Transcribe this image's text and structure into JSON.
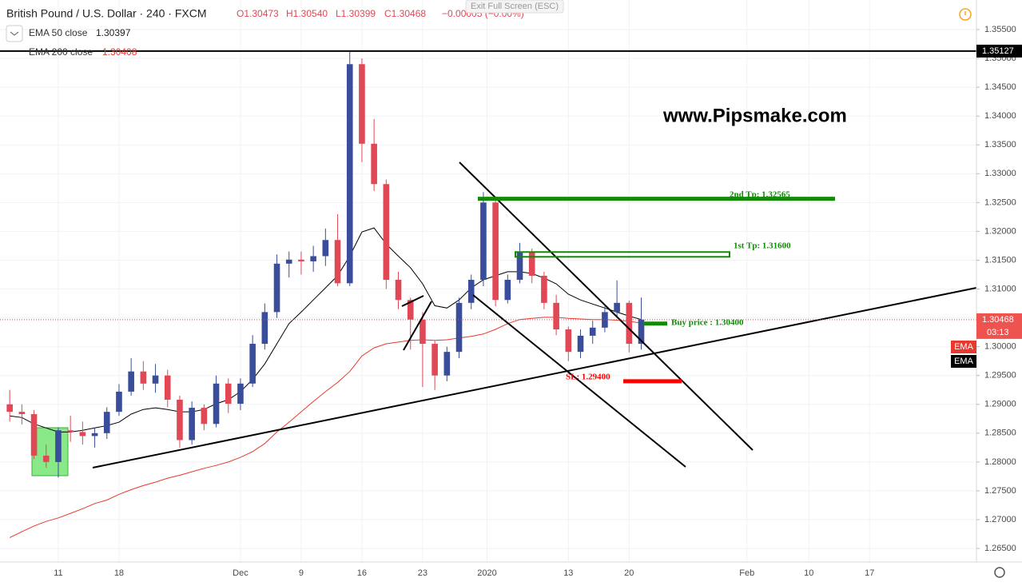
{
  "chart_data": {
    "type": "candlestick",
    "title": "British Pound / U.S. Dollar · 240 · FXCM",
    "ohlc_labels": [
      "O1.30473",
      "H1.30540",
      "L1.30399",
      "C1.30468",
      "−0.00005 (−0.00%)"
    ],
    "fullscreen_hint": "Exit Full Screen (ESC)",
    "watermark": "www.Pipsmake.com",
    "up_color": "#3a4d9a",
    "down_color": "#e04856",
    "x": [
      -4,
      -3,
      -2,
      -1,
      0,
      1,
      2,
      3,
      4,
      5,
      6,
      7,
      8,
      9,
      10,
      11,
      12,
      13,
      14,
      15,
      16,
      17,
      18,
      19,
      20,
      21,
      22,
      23,
      24,
      25,
      26,
      27,
      28,
      29,
      30,
      31,
      32,
      33,
      34,
      35,
      36,
      37,
      38,
      39,
      40,
      41,
      42,
      43,
      44,
      45,
      46,
      47,
      48
    ],
    "open": [
      1.29,
      1.2887,
      1.2883,
      1.2811,
      1.28,
      1.2855,
      1.2852,
      1.2845,
      1.285,
      1.2887,
      1.2922,
      1.2957,
      1.2936,
      1.295,
      1.2908,
      1.2838,
      1.2894,
      1.2866,
      1.2936,
      1.2901,
      1.2936,
      1.3005,
      1.306,
      1.3144,
      1.3151,
      1.3148,
      1.3157,
      1.3185,
      1.311,
      1.349,
      1.3352,
      1.3282,
      1.3116,
      1.3081,
      1.3047,
      1.3005,
      1.295,
      1.2991,
      1.3076,
      1.3116,
      1.325,
      1.3081,
      1.3116,
      1.3165,
      1.3123,
      1.3076,
      1.303,
      1.2991,
      1.3019,
      1.3033,
      1.306,
      1.3076,
      1.3005
    ],
    "high": [
      1.2925,
      1.29,
      1.289,
      1.283,
      1.286,
      1.288,
      1.287,
      1.286,
      1.2895,
      1.2935,
      1.298,
      1.2975,
      1.297,
      1.296,
      1.2915,
      1.2905,
      1.29,
      1.295,
      1.2945,
      1.2945,
      1.302,
      1.3075,
      1.316,
      1.3165,
      1.3165,
      1.3175,
      1.3205,
      1.323,
      1.3511,
      1.35,
      1.3395,
      1.329,
      1.313,
      1.3085,
      1.306,
      1.301,
      1.3,
      1.3085,
      1.3125,
      1.3268,
      1.3255,
      1.3125,
      1.318,
      1.317,
      1.313,
      1.309,
      1.3035,
      1.303,
      1.3045,
      1.307,
      1.3115,
      1.308,
      1.3085
    ],
    "low": [
      1.287,
      1.2865,
      1.2805,
      1.279,
      1.2773,
      1.2835,
      1.283,
      1.2825,
      1.284,
      1.288,
      1.2915,
      1.2925,
      1.292,
      1.2895,
      1.2825,
      1.283,
      1.2855,
      1.286,
      1.2885,
      1.289,
      1.293,
      1.2995,
      1.305,
      1.312,
      1.3125,
      1.313,
      1.314,
      1.3105,
      1.3105,
      1.332,
      1.327,
      1.31,
      1.3065,
      1.2995,
      1.293,
      1.2925,
      1.294,
      1.298,
      1.3065,
      1.3105,
      1.307,
      1.3075,
      1.311,
      1.311,
      1.3065,
      1.302,
      1.2975,
      1.298,
      1.3005,
      1.3025,
      1.305,
      1.299,
      1.2995
    ],
    "close": [
      1.2887,
      1.2883,
      1.2811,
      1.28,
      1.2855,
      1.2852,
      1.2845,
      1.285,
      1.2887,
      1.2922,
      1.2957,
      1.2936,
      1.295,
      1.2908,
      1.2838,
      1.2894,
      1.2866,
      1.2936,
      1.2901,
      1.2936,
      1.3005,
      1.306,
      1.3144,
      1.3151,
      1.3148,
      1.3157,
      1.3185,
      1.311,
      1.349,
      1.3352,
      1.3282,
      1.3116,
      1.3081,
      1.3047,
      1.3005,
      1.295,
      1.2991,
      1.3076,
      1.3116,
      1.325,
      1.3081,
      1.3116,
      1.3165,
      1.3123,
      1.3076,
      1.303,
      1.2991,
      1.3019,
      1.3033,
      1.306,
      1.3076,
      1.3005,
      1.3047
    ],
    "series": [
      {
        "name": "EMA 50 close",
        "color": "#000000",
        "last": 1.30397,
        "values": [
          1.288,
          1.2877,
          1.2866,
          1.2859,
          1.2852,
          1.2852,
          1.2855,
          1.2859,
          1.2863,
          1.2869,
          1.2883,
          1.2891,
          1.2894,
          1.2891,
          1.2887,
          1.2887,
          1.2891,
          1.2901,
          1.2908,
          1.2922,
          1.2943,
          1.297,
          1.3005,
          1.304,
          1.306,
          1.3081,
          1.3102,
          1.3123,
          1.3157,
          1.3199,
          1.3206,
          1.3178,
          1.3157,
          1.3137,
          1.3109,
          1.3071,
          1.3067,
          1.3081,
          1.3102,
          1.3116,
          1.3123,
          1.313,
          1.313,
          1.3127,
          1.3119,
          1.3109,
          1.3091,
          1.3081,
          1.3074,
          1.3067,
          1.306,
          1.3053,
          1.3047
        ]
      },
      {
        "name": "EMA 200 close",
        "color": "#e8392f",
        "last": 1.30408,
        "values": [
          1.2669,
          1.2679,
          1.2689,
          1.2697,
          1.2703,
          1.2711,
          1.2719,
          1.2728,
          1.2734,
          1.2744,
          1.2752,
          1.2759,
          1.2765,
          1.2772,
          1.2777,
          1.2783,
          1.2789,
          1.2794,
          1.28,
          1.2808,
          1.2818,
          1.2832,
          1.2852,
          1.2869,
          1.2887,
          1.2905,
          1.2922,
          1.2938,
          1.2957,
          1.2984,
          1.2998,
          1.3005,
          1.3008,
          1.3011,
          1.3012,
          1.3011,
          1.3012,
          1.3015,
          1.3018,
          1.3022,
          1.303,
          1.304,
          1.3047,
          1.3049,
          1.3051,
          1.3051,
          1.3049,
          1.3048,
          1.3047,
          1.3047,
          1.3046,
          1.3044,
          1.3041
        ]
      }
    ],
    "levels": [
      {
        "label": "2nd Tp: 1.32565",
        "value": 1.32565,
        "color": "#138a07"
      },
      {
        "label": "1st Tp: 1.31600",
        "value": 1.316,
        "color": "#138a07"
      },
      {
        "label": "Buy price : 1.30400",
        "value": 1.304,
        "color": "#138a07"
      },
      {
        "label": "SL: 1.29400",
        "value": 1.294,
        "color": "#ff0000"
      }
    ],
    "hline": 1.35127,
    "last_price": 1.30468,
    "countdown": "03:13",
    "axis_tags": [
      "EMA",
      "EMA"
    ],
    "xlim": [
      -4.8,
      75.6
    ],
    "ylim": [
      1.26265,
      1.36013
    ],
    "xticks": [
      {
        "value": 0,
        "label": "11"
      },
      {
        "value": 5,
        "label": "18"
      },
      {
        "value": 15,
        "label": "Dec"
      },
      {
        "value": 20,
        "label": "9"
      },
      {
        "value": 25,
        "label": "16"
      },
      {
        "value": 30,
        "label": "23"
      },
      {
        "value": 35.3,
        "label": "2020"
      },
      {
        "value": 42,
        "label": "13"
      },
      {
        "value": 47,
        "label": "20"
      },
      {
        "value": 56.7,
        "label": "Feb"
      },
      {
        "value": 61.8,
        "label": "10"
      },
      {
        "value": 66.8,
        "label": "17"
      }
    ],
    "yticks": [
      {
        "value": 1.265,
        "label": "1.26500"
      },
      {
        "value": 1.27,
        "label": "1.27000"
      },
      {
        "value": 1.275,
        "label": "1.27500"
      },
      {
        "value": 1.28,
        "label": "1.28000"
      },
      {
        "value": 1.285,
        "label": "1.28500"
      },
      {
        "value": 1.29,
        "label": "1.29000"
      },
      {
        "value": 1.295,
        "label": "1.29500"
      },
      {
        "value": 1.3,
        "label": "1.30000"
      },
      {
        "value": 1.305,
        "label": "1.30500"
      },
      {
        "value": 1.31,
        "label": "1.31000"
      },
      {
        "value": 1.315,
        "label": "1.31500"
      },
      {
        "value": 1.32,
        "label": "1.32000"
      },
      {
        "value": 1.325,
        "label": "1.32500"
      },
      {
        "value": 1.33,
        "label": "1.33000"
      },
      {
        "value": 1.335,
        "label": "1.33500"
      },
      {
        "value": 1.34,
        "label": "1.34000"
      },
      {
        "value": 1.345,
        "label": "1.34500"
      },
      {
        "value": 1.35,
        "label": "1.35000"
      },
      {
        "value": 1.355,
        "label": "1.35500"
      }
    ],
    "grid": true
  }
}
